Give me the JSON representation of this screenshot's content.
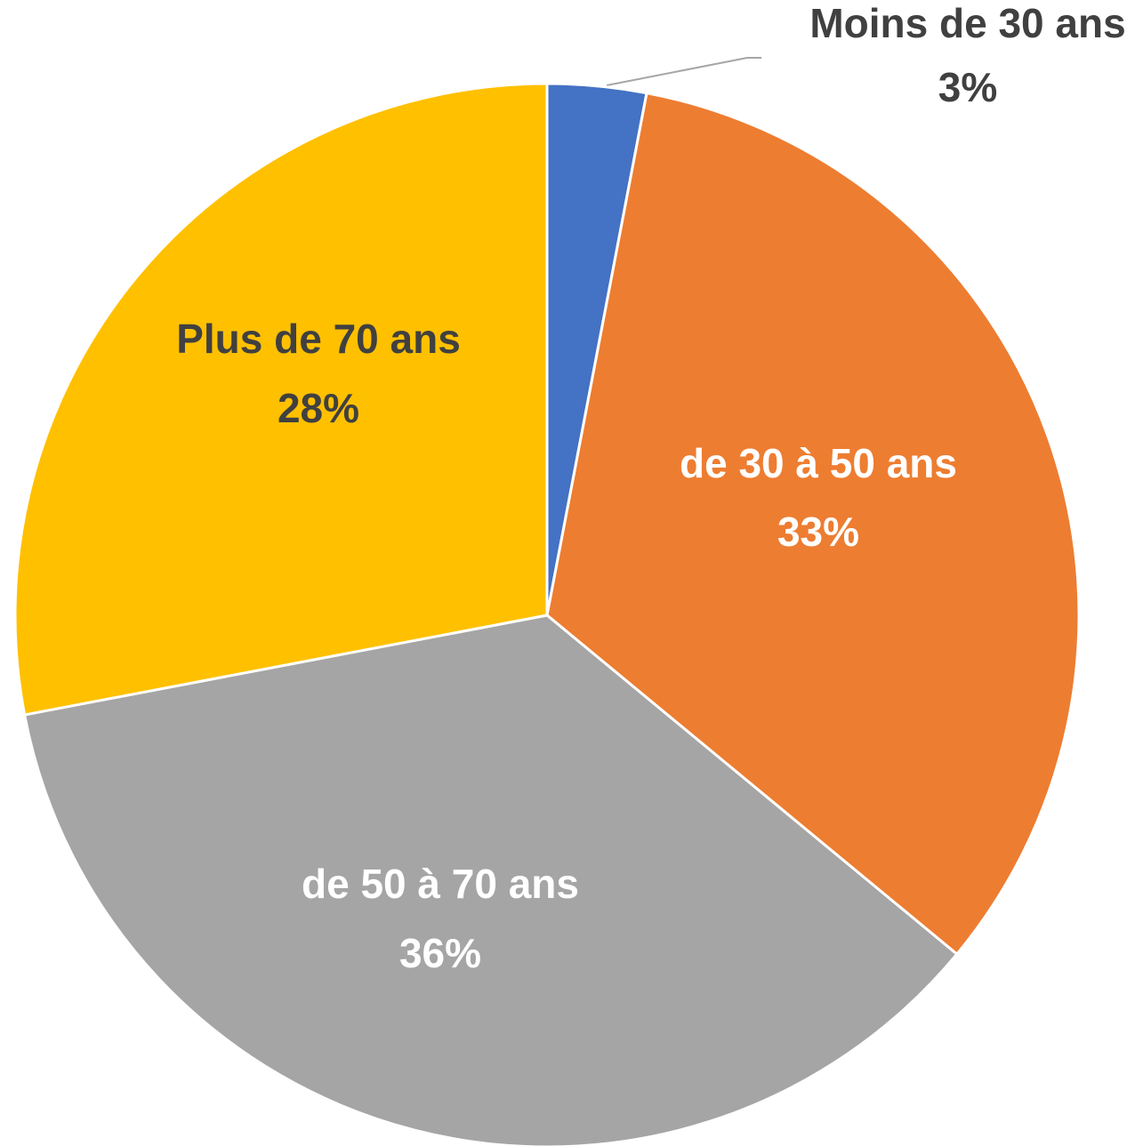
{
  "chart_data": {
    "type": "pie",
    "categories": [
      "Moins de 30 ans",
      "de 30 à 50 ans",
      "de 50 à 70 ans",
      "Plus de 70 ans"
    ],
    "values": [
      3,
      33,
      36,
      28
    ],
    "value_labels": [
      "3%",
      "33%",
      "36%",
      "28%"
    ],
    "colors": [
      "#4472c4",
      "#ed7d31",
      "#a5a5a5",
      "#ffc000"
    ]
  }
}
